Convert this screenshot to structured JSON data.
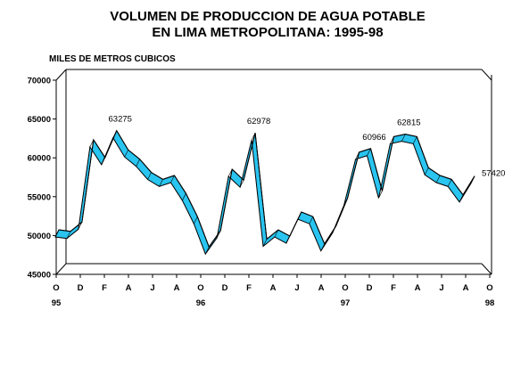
{
  "chart_data": {
    "type": "area",
    "title": "VOLUMEN DE PRODUCCION DE AGUA POTABLE",
    "subtitle": "EN LIMA METROPOLITANA: 1995-98",
    "ylabel": "MILES DE METROS CUBICOS",
    "ylim": [
      45000,
      70000
    ],
    "yticks": [
      "70000",
      "65000",
      "60000",
      "55000",
      "50000",
      "45000"
    ],
    "ytick_values": [
      70000,
      65000,
      60000,
      55000,
      50000,
      45000
    ],
    "x_month_labels": [
      "O",
      "D",
      "F",
      "A",
      "J",
      "A",
      "O",
      "D",
      "F",
      "A",
      "J",
      "A",
      "O",
      "D",
      "F",
      "A",
      "J",
      "A",
      "O"
    ],
    "x_year_labels": [
      {
        "label": "95",
        "index": 0
      },
      {
        "label": "96",
        "index": 12
      },
      {
        "label": "97",
        "index": 24
      },
      {
        "label": "98",
        "index": 36
      }
    ],
    "x": [
      "1995-10",
      "1995-11",
      "1995-12",
      "1996-01",
      "1996-02",
      "1996-03",
      "1996-04",
      "1996-05",
      "1996-06",
      "1996-07",
      "1996-08",
      "1996-09",
      "1996-10",
      "1996-11",
      "1996-12",
      "1997-01",
      "1997-02",
      "1997-03",
      "1997-04",
      "1997-05",
      "1997-06",
      "1997-07",
      "1997-08",
      "1997-09",
      "1997-10",
      "1997-11",
      "1997-12",
      "1998-01",
      "1998-02",
      "1998-03",
      "1998-04",
      "1998-05",
      "1998-06",
      "1998-07",
      "1998-08",
      "1998-09",
      "1998-10"
    ],
    "values": [
      50500,
      50300,
      51500,
      62100,
      59800,
      63275,
      60800,
      59600,
      57900,
      57000,
      57500,
      55200,
      52200,
      48300,
      50400,
      58300,
      56900,
      62978,
      49300,
      50500,
      49700,
      52800,
      52200,
      48700,
      51000,
      54600,
      60500,
      60966,
      55500,
      62500,
      62815,
      62500,
      58500,
      57500,
      57000,
      55000,
      57420
    ],
    "data_labels": [
      {
        "index": 5,
        "text": "63275"
      },
      {
        "index": 17,
        "text": "62978"
      },
      {
        "index": 27,
        "text": "60966"
      },
      {
        "index": 30,
        "text": "62815"
      },
      {
        "index": 36,
        "text": "57420"
      }
    ],
    "series_color": "#29c4f0",
    "grid": false,
    "legend": "none"
  }
}
